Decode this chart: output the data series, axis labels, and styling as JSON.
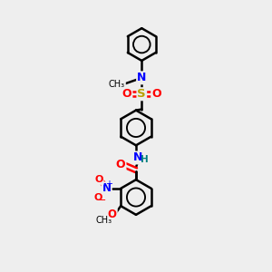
{
  "bg_color": "#eeeeee",
  "bond_color": "#000000",
  "bond_width": 1.8,
  "figsize": [
    3.0,
    3.0
  ],
  "dpi": 100,
  "xlim": [
    0,
    10
  ],
  "ylim": [
    0,
    14
  ]
}
